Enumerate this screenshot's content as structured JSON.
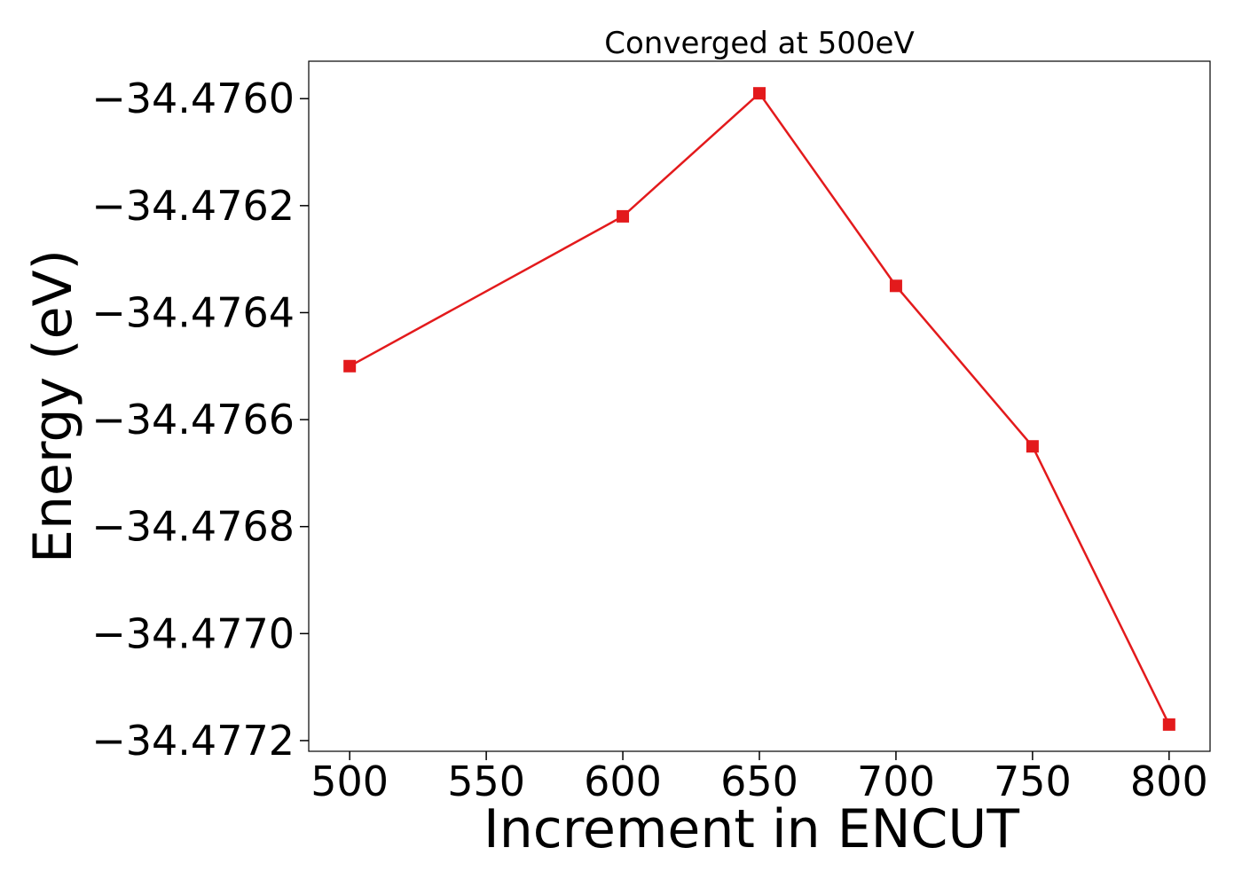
{
  "chart_data": {
    "type": "line",
    "title": "Converged at 500eV",
    "xlabel": "Increment in ENCUT",
    "ylabel": "Energy (eV)",
    "xlim": [
      485,
      815
    ],
    "ylim": [
      -34.47722,
      -34.47593
    ],
    "x_ticks": [
      500,
      550,
      600,
      650,
      700,
      750,
      800
    ],
    "x_tick_labels": [
      "500",
      "550",
      "600",
      "650",
      "700",
      "750",
      "800"
    ],
    "y_ticks": [
      -34.476,
      -34.4762,
      -34.4764,
      -34.4766,
      -34.4768,
      -34.477,
      -34.4772
    ],
    "y_tick_labels": [
      "−34.4760",
      "−34.4762",
      "−34.4764",
      "−34.4766",
      "−34.4768",
      "−34.4770",
      "−34.4772"
    ],
    "grid": false,
    "series": [
      {
        "color": "#e31a1c",
        "marker": "square",
        "x": [
          500,
          600,
          650,
          700,
          750,
          800
        ],
        "y": [
          -34.4765,
          -34.47622,
          -34.47599,
          -34.47635,
          -34.47665,
          -34.47717
        ]
      }
    ]
  }
}
